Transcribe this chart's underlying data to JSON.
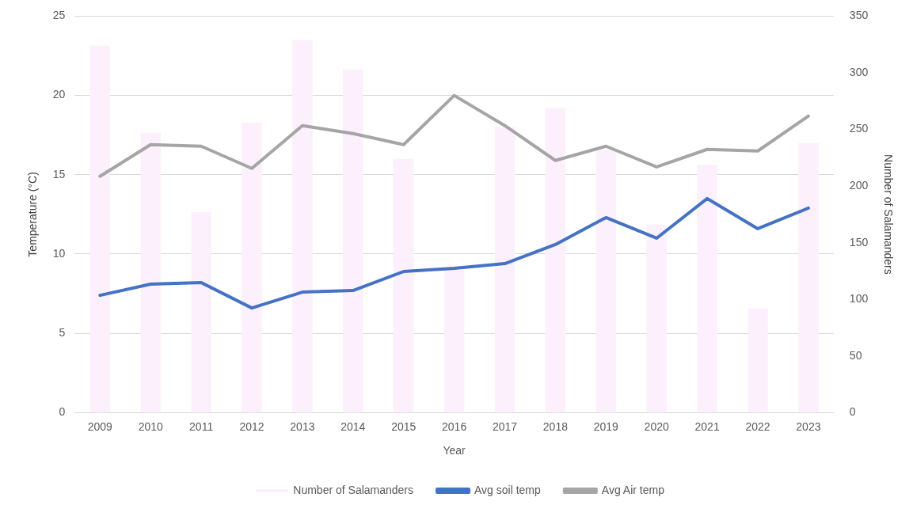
{
  "chart_data": {
    "type": "bar",
    "xlabel": "Year",
    "ylabel": "Temperature (°C)",
    "y2label": "Number of Salamanders",
    "categories": [
      "2009",
      "2010",
      "2011",
      "2012",
      "2013",
      "2014",
      "2015",
      "2016",
      "2017",
      "2018",
      "2019",
      "2020",
      "2021",
      "2022",
      "2023"
    ],
    "series": [
      {
        "name": "Number of Salamanders",
        "axis": "y2",
        "color": "#fdf0fd",
        "values": [
          324,
          247,
          177,
          256,
          329,
          303,
          224,
          126,
          252,
          269,
          232,
          166,
          219,
          92,
          238
        ]
      },
      {
        "name": "Avg soil temp",
        "type": "line",
        "color": "#4472c4",
        "values": [
          7.4,
          8.1,
          8.2,
          6.6,
          7.6,
          7.7,
          8.9,
          9.1,
          9.4,
          10.6,
          12.3,
          11.0,
          13.5,
          11.6,
          12.9
        ]
      },
      {
        "name": "Avg Air temp",
        "type": "line",
        "color": "#a5a5a5",
        "values": [
          14.9,
          16.9,
          16.8,
          15.4,
          18.1,
          17.6,
          16.9,
          20.0,
          18.1,
          15.9,
          16.8,
          15.5,
          16.6,
          16.5,
          18.7
        ]
      }
    ],
    "ylim": [
      0,
      25
    ],
    "yticks": [
      0,
      5,
      10,
      15,
      20,
      25
    ],
    "y2lim": [
      0,
      350
    ],
    "y2ticks": [
      0,
      50,
      100,
      150,
      200,
      250,
      300,
      350
    ],
    "grid": "y",
    "legend": "bottom",
    "marker": "none",
    "line_style": "solid"
  }
}
